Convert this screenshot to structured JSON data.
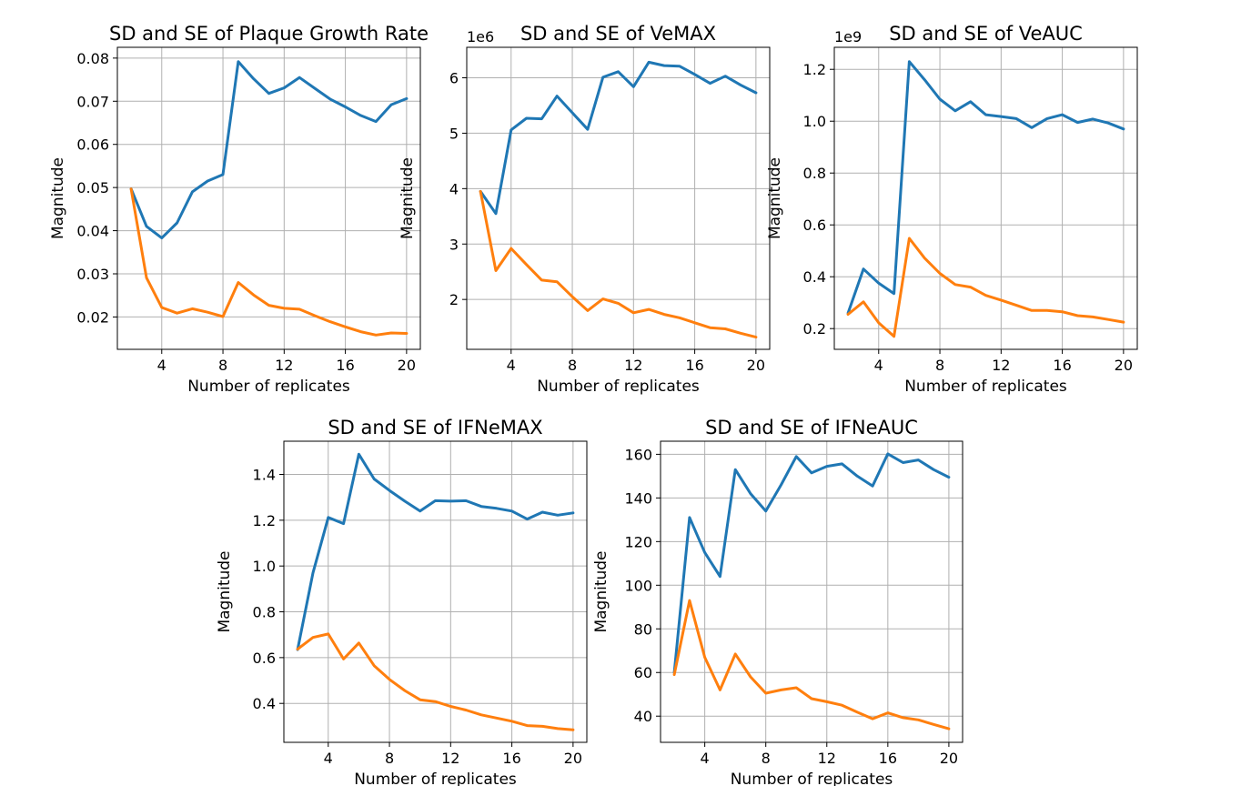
{
  "chart_data": [
    {
      "type": "line",
      "title": "SD and SE of Plaque Growth Rate",
      "xlabel": "Number of replicates",
      "ylabel": "Magnitude",
      "offset_text": "",
      "xlim": [
        1.1,
        20.9
      ],
      "ylim": [
        0.0125,
        0.0825
      ],
      "xticks": [
        4,
        8,
        12,
        16,
        20
      ],
      "xtick_labels": [
        "4",
        "8",
        "12",
        "16",
        "20"
      ],
      "yticks": [
        0.02,
        0.03,
        0.04,
        0.05,
        0.06,
        0.07,
        0.08
      ],
      "ytick_labels": [
        "0.02",
        "0.03",
        "0.04",
        "0.05",
        "0.06",
        "0.07",
        "0.08"
      ],
      "grid": true,
      "x": [
        2,
        3,
        4,
        5,
        6,
        7,
        8,
        9,
        10,
        11,
        12,
        13,
        14,
        15,
        16,
        17,
        18,
        19,
        20
      ],
      "series": [
        {
          "color": "#1f77b4",
          "values": [
            0.0497,
            0.041,
            0.0383,
            0.0418,
            0.049,
            0.0515,
            0.053,
            0.0792,
            0.0752,
            0.0718,
            0.0731,
            0.0755,
            0.073,
            0.0705,
            0.0687,
            0.0667,
            0.0653,
            0.0692,
            0.0706
          ]
        },
        {
          "color": "#ff7f0e",
          "values": [
            0.0497,
            0.0291,
            0.0222,
            0.0209,
            0.0219,
            0.0211,
            0.0201,
            0.028,
            0.0251,
            0.0227,
            0.022,
            0.0218,
            0.0203,
            0.0189,
            0.0177,
            0.0166,
            0.0158,
            0.0163,
            0.0162
          ]
        }
      ]
    },
    {
      "type": "line",
      "title": "SD and SE of VeMAX",
      "xlabel": "Number of replicates",
      "ylabel": "Magnitude",
      "offset_text": "1e6",
      "xlim": [
        1.1,
        20.9
      ],
      "ylim": [
        1.1,
        6.55
      ],
      "xticks": [
        4,
        8,
        12,
        16,
        20
      ],
      "xtick_labels": [
        "4",
        "8",
        "12",
        "16",
        "20"
      ],
      "yticks": [
        2,
        3,
        4,
        5,
        6
      ],
      "ytick_labels": [
        "2",
        "3",
        "4",
        "5",
        "6"
      ],
      "grid": true,
      "x": [
        2,
        3,
        4,
        5,
        6,
        7,
        8,
        9,
        10,
        11,
        12,
        13,
        14,
        15,
        16,
        17,
        18,
        19,
        20
      ],
      "series": [
        {
          "color": "#1f77b4",
          "values": [
            3.95,
            3.55,
            5.06,
            5.27,
            5.26,
            5.67,
            5.37,
            5.07,
            6.01,
            6.11,
            5.84,
            6.28,
            6.22,
            6.21,
            6.06,
            5.9,
            6.03,
            5.87,
            5.73
          ]
        },
        {
          "color": "#ff7f0e",
          "values": [
            3.95,
            2.52,
            2.92,
            2.63,
            2.35,
            2.32,
            2.05,
            1.8,
            2.01,
            1.93,
            1.76,
            1.82,
            1.73,
            1.67,
            1.58,
            1.49,
            1.47,
            1.39,
            1.32
          ]
        }
      ]
    },
    {
      "type": "line",
      "title": "SD and SE of VeAUC",
      "xlabel": "Number of replicates",
      "ylabel": "Magnitude",
      "offset_text": "1e9",
      "xlim": [
        1.1,
        20.9
      ],
      "ylim": [
        0.12,
        1.285
      ],
      "xticks": [
        4,
        8,
        12,
        16,
        20
      ],
      "xtick_labels": [
        "4",
        "8",
        "12",
        "16",
        "20"
      ],
      "yticks": [
        0.2,
        0.4,
        0.6,
        0.8,
        1.0,
        1.2
      ],
      "ytick_labels": [
        "0.2",
        "0.4",
        "0.6",
        "0.8",
        "1.0",
        "1.2"
      ],
      "grid": true,
      "x": [
        2,
        3,
        4,
        5,
        6,
        7,
        8,
        9,
        10,
        11,
        12,
        13,
        14,
        15,
        16,
        17,
        18,
        19,
        20
      ],
      "series": [
        {
          "color": "#1f77b4",
          "values": [
            0.26,
            0.43,
            0.375,
            0.335,
            1.23,
            1.16,
            1.085,
            1.04,
            1.075,
            1.025,
            1.018,
            1.01,
            0.975,
            1.01,
            1.025,
            0.995,
            1.008,
            0.993,
            0.97
          ]
        },
        {
          "color": "#ff7f0e",
          "values": [
            0.255,
            0.303,
            0.222,
            0.17,
            0.548,
            0.472,
            0.413,
            0.37,
            0.36,
            0.328,
            0.31,
            0.29,
            0.27,
            0.27,
            0.265,
            0.25,
            0.245,
            0.235,
            0.225
          ]
        }
      ]
    },
    {
      "type": "line",
      "title": "SD and SE of IFNeMAX",
      "xlabel": "Number of replicates",
      "ylabel": "Magnitude",
      "offset_text": "",
      "xlim": [
        1.1,
        20.9
      ],
      "ylim": [
        0.23,
        1.545
      ],
      "xticks": [
        4,
        8,
        12,
        16,
        20
      ],
      "xtick_labels": [
        "4",
        "8",
        "12",
        "16",
        "20"
      ],
      "yticks": [
        0.4,
        0.6,
        0.8,
        1.0,
        1.2,
        1.4
      ],
      "ytick_labels": [
        "0.4",
        "0.6",
        "0.8",
        "1.0",
        "1.2",
        "1.4"
      ],
      "grid": true,
      "x": [
        2,
        3,
        4,
        5,
        6,
        7,
        8,
        9,
        10,
        11,
        12,
        13,
        14,
        15,
        16,
        17,
        18,
        19,
        20
      ],
      "series": [
        {
          "color": "#1f77b4",
          "values": [
            0.635,
            0.97,
            1.212,
            1.185,
            1.488,
            1.38,
            1.33,
            1.283,
            1.24,
            1.285,
            1.283,
            1.285,
            1.26,
            1.252,
            1.24,
            1.205,
            1.235,
            1.222,
            1.232
          ]
        },
        {
          "color": "#ff7f0e",
          "values": [
            0.637,
            0.688,
            0.703,
            0.594,
            0.664,
            0.565,
            0.505,
            0.456,
            0.416,
            0.408,
            0.387,
            0.371,
            0.35,
            0.336,
            0.322,
            0.303,
            0.3,
            0.29,
            0.285
          ]
        }
      ]
    },
    {
      "type": "line",
      "title": "SD and SE of IFNeAUC",
      "xlabel": "Number of replicates",
      "ylabel": "Magnitude",
      "offset_text": "",
      "xlim": [
        1.1,
        20.9
      ],
      "ylim": [
        28,
        166
      ],
      "xticks": [
        4,
        8,
        12,
        16,
        20
      ],
      "xtick_labels": [
        "4",
        "8",
        "12",
        "16",
        "20"
      ],
      "yticks": [
        40,
        60,
        80,
        100,
        120,
        140,
        160
      ],
      "ytick_labels": [
        "40",
        "60",
        "80",
        "100",
        "120",
        "140",
        "160"
      ],
      "grid": true,
      "x": [
        2,
        3,
        4,
        5,
        6,
        7,
        8,
        9,
        10,
        11,
        12,
        13,
        14,
        15,
        16,
        17,
        18,
        19,
        20
      ],
      "series": [
        {
          "color": "#1f77b4",
          "values": [
            60,
            131,
            115,
            104,
            153,
            142,
            134,
            146,
            159,
            151.5,
            154.5,
            155.6,
            150,
            145.5,
            160.2,
            156.2,
            157.4,
            153,
            149.5
          ]
        },
        {
          "color": "#ff7f0e",
          "values": [
            59,
            93,
            67,
            52,
            68.5,
            58,
            50.5,
            52,
            53,
            48,
            46.6,
            45,
            41.8,
            38.8,
            41.5,
            39.3,
            38.3,
            36.2,
            34.2
          ]
        }
      ]
    }
  ]
}
